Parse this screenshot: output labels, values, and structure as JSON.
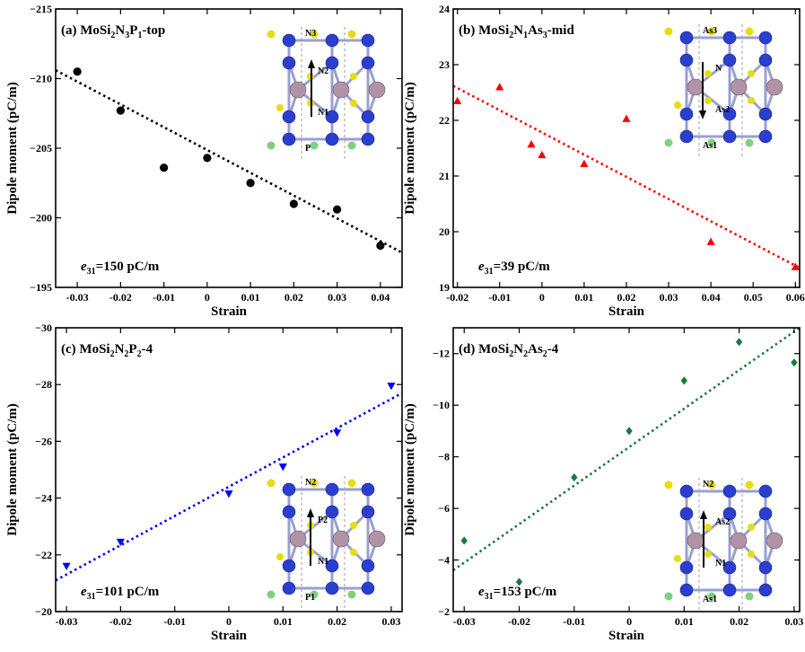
{
  "chart_data": [
    {
      "type": "scatter",
      "panel_label": "(a)",
      "title_parts": [
        [
          "MoSi",
          ""
        ],
        [
          "2",
          "sub"
        ],
        [
          "N",
          ""
        ],
        [
          "3",
          "sub"
        ],
        [
          "P",
          ""
        ],
        [
          "1",
          "sub"
        ],
        [
          "-top",
          ""
        ]
      ],
      "xlabel": "Strain",
      "ylabel": "Dipole moment (pC/m)",
      "xlim": [
        -0.035,
        0.045
      ],
      "ylim": [
        -215,
        -195
      ],
      "y_inverted": true,
      "xticks": [
        -0.03,
        -0.02,
        -0.01,
        0,
        0.01,
        0.02,
        0.03,
        0.04
      ],
      "xtick_labels": [
        "-0.03",
        "-0.02",
        "-0.01",
        "0",
        "0.01",
        "0.02",
        "0.03",
        "0.04"
      ],
      "yticks": [
        -215,
        -210,
        -205,
        -200,
        -195
      ],
      "ytick_labels": [
        "−215",
        "−210",
        "−205",
        "−200",
        "−195"
      ],
      "marker": "circle",
      "color": "#000000",
      "x": [
        -0.03,
        -0.02,
        -0.01,
        0,
        0.01,
        0.02,
        0.03,
        0.04
      ],
      "y": [
        -210.5,
        -207.7,
        -203.6,
        -204.3,
        -202.5,
        -201.0,
        -200.6,
        -198.0
      ],
      "fit": {
        "x": [
          -0.035,
          0.045
        ],
        "y": [
          -210.6,
          -197.5
        ]
      },
      "coefficient": {
        "symbol": "e",
        "sub": "31",
        "text": "=150 pC/m"
      },
      "inset": {
        "labels": [
          "N3",
          "N2",
          "N1",
          "P"
        ],
        "arrow": "up"
      }
    },
    {
      "type": "scatter",
      "panel_label": "(b)",
      "title_parts": [
        [
          "MoSi",
          ""
        ],
        [
          "2",
          "sub"
        ],
        [
          "N",
          ""
        ],
        [
          "1",
          "sub"
        ],
        [
          "As",
          ""
        ],
        [
          "3",
          "sub"
        ],
        [
          "-mid",
          ""
        ]
      ],
      "xlabel": "Strain",
      "ylabel": "Dipole moment (pC/m)",
      "xlim": [
        -0.021,
        0.061
      ],
      "ylim": [
        19,
        24
      ],
      "y_inverted": false,
      "xticks": [
        -0.02,
        -0.01,
        0,
        0.01,
        0.02,
        0.03,
        0.04,
        0.05,
        0.06
      ],
      "xtick_labels": [
        "-0.02",
        "-0.01",
        "0",
        "0.01",
        "0.02",
        "0.03",
        "0.04",
        "0.05",
        "0.06"
      ],
      "yticks": [
        19,
        20,
        21,
        22,
        23,
        24
      ],
      "ytick_labels": [
        "19",
        "20",
        "21",
        "22",
        "23",
        "24"
      ],
      "marker": "triangle-up",
      "color": "#ff0000",
      "x": [
        -0.02,
        -0.01,
        -0.0025,
        0,
        0.01,
        0.02,
        0.04,
        0.06
      ],
      "y": [
        22.35,
        22.6,
        21.57,
        21.38,
        21.22,
        22.03,
        19.82,
        19.37
      ],
      "fit": {
        "x": [
          -0.021,
          0.061
        ],
        "y": [
          22.62,
          19.35
        ]
      },
      "coefficient": {
        "symbol": "e",
        "sub": "31",
        "text": "=39 pC/m"
      },
      "inset": {
        "labels": [
          "As3",
          "N",
          "As2",
          "As1"
        ],
        "arrow": "down"
      }
    },
    {
      "type": "scatter",
      "panel_label": "(c)",
      "title_parts": [
        [
          "MoSi",
          ""
        ],
        [
          "2",
          "sub"
        ],
        [
          "N",
          ""
        ],
        [
          "2",
          "sub"
        ],
        [
          "P",
          ""
        ],
        [
          "2",
          "sub"
        ],
        [
          "-4",
          ""
        ]
      ],
      "xlabel": "Strain",
      "ylabel": "Dipole moment (pC/m)",
      "xlim": [
        -0.032,
        0.032
      ],
      "ylim": [
        -30,
        -20
      ],
      "y_inverted": true,
      "xticks": [
        -0.03,
        -0.02,
        -0.01,
        0,
        0.01,
        0.02,
        0.03
      ],
      "xtick_labels": [
        "-0.03",
        "-0.02",
        "-0.01",
        "0",
        "0.01",
        "0.02",
        "0.03"
      ],
      "yticks": [
        -30,
        -28,
        -26,
        -24,
        -22,
        -20
      ],
      "ytick_labels": [
        "−30",
        "−28",
        "−26",
        "−24",
        "−22",
        "−20"
      ],
      "marker": "triangle-down",
      "color": "#0000ff",
      "x": [
        -0.03,
        -0.02,
        0,
        0.01,
        0.02,
        0.03
      ],
      "y": [
        -21.6,
        -22.45,
        -24.15,
        -25.1,
        -26.3,
        -27.95
      ],
      "fit": {
        "x": [
          -0.032,
          0.032
        ],
        "y": [
          -21.1,
          -27.7
        ]
      },
      "coefficient": {
        "symbol": "e",
        "sub": "31",
        "text": "=101 pC/m"
      },
      "inset": {
        "labels": [
          "N2",
          "P2",
          "N1",
          "P1"
        ],
        "arrow": "up"
      }
    },
    {
      "type": "scatter",
      "panel_label": "(d)",
      "title_parts": [
        [
          "MoSi",
          ""
        ],
        [
          "2",
          "sub"
        ],
        [
          "N",
          ""
        ],
        [
          "2",
          "sub"
        ],
        [
          "As",
          ""
        ],
        [
          "2",
          "sub"
        ],
        [
          "-4",
          ""
        ]
      ],
      "xlabel": "Strain",
      "ylabel": "Dipole moment (pC/m)",
      "xlim": [
        -0.032,
        0.031
      ],
      "ylim": [
        -13,
        -2
      ],
      "y_inverted": true,
      "xticks": [
        -0.03,
        -0.02,
        -0.01,
        0,
        0.01,
        0.02,
        0.03
      ],
      "xtick_labels": [
        "-0.03",
        "-0.02",
        "-0.01",
        "0",
        "0.01",
        "0.02",
        "0.03"
      ],
      "yticks": [
        -12,
        -10,
        -8,
        -6,
        -4,
        -2
      ],
      "ytick_labels": [
        "−12",
        "−10",
        "−8",
        "−6",
        "−4",
        "−2"
      ],
      "marker": "diamond",
      "color": "#1a7a3a",
      "x": [
        -0.03,
        -0.02,
        -0.01,
        0,
        0.01,
        0.02,
        0.03
      ],
      "y": [
        -4.75,
        -3.15,
        -7.2,
        -9.0,
        -10.95,
        -12.45,
        -11.65
      ],
      "fit": {
        "x": [
          -0.032,
          0.031
        ],
        "y": [
          -3.6,
          -13.0
        ]
      },
      "coefficient": {
        "symbol": "e",
        "sub": "31",
        "text": "=153 pC/m"
      },
      "inset": {
        "labels": [
          "N2",
          "As2",
          "N1",
          "As1"
        ],
        "arrow": "up"
      }
    }
  ]
}
